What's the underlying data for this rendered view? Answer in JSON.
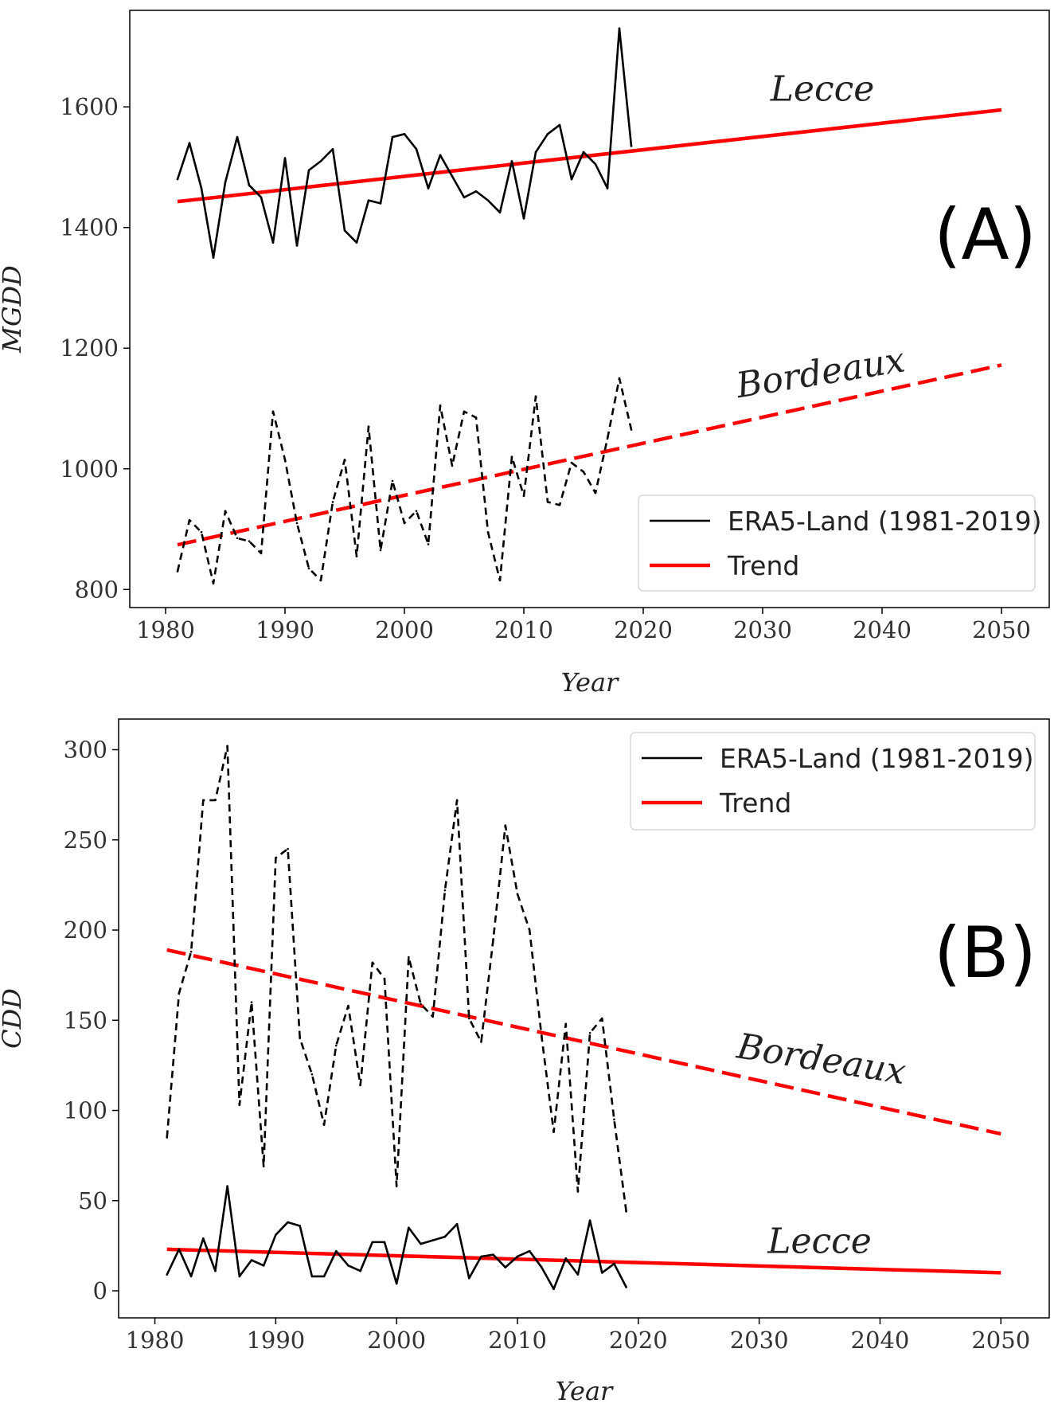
{
  "chart_data": [
    {
      "type": "line",
      "panel_label": "(A)",
      "xlabel": "Year",
      "ylabel": "MGDD",
      "xlim": [
        1977,
        2054
      ],
      "ylim": [
        770,
        1760
      ],
      "xticks": [
        1980,
        1990,
        2000,
        2010,
        2020,
        2030,
        2040,
        2050
      ],
      "yticks": [
        800,
        1000,
        1200,
        1400,
        1600
      ],
      "legend": {
        "placement": "lower-right",
        "entries": [
          {
            "label": "ERA5-Land (1981-2019)",
            "color": "#000000"
          },
          {
            "label": "Trend",
            "color": "#ff0000"
          }
        ]
      },
      "site_labels": [
        {
          "text": "Lecce",
          "x": 2035,
          "y": 1610,
          "rotate": 0
        },
        {
          "text": "Bordeaux",
          "x": 2035,
          "y": 1140,
          "rotate": -9
        }
      ],
      "series": [
        {
          "name": "Lecce",
          "style": "solid",
          "color": "#000000",
          "x": [
            1981,
            1982,
            1983,
            1984,
            1985,
            1986,
            1987,
            1988,
            1989,
            1990,
            1991,
            1992,
            1993,
            1994,
            1995,
            1996,
            1997,
            1998,
            1999,
            2000,
            2001,
            2002,
            2003,
            2004,
            2005,
            2006,
            2007,
            2008,
            2009,
            2010,
            2011,
            2012,
            2013,
            2014,
            2015,
            2016,
            2017,
            2018,
            2019
          ],
          "y": [
            1480,
            1540,
            1465,
            1350,
            1475,
            1550,
            1470,
            1450,
            1375,
            1515,
            1370,
            1495,
            1510,
            1530,
            1395,
            1375,
            1445,
            1440,
            1550,
            1555,
            1530,
            1465,
            1520,
            1485,
            1450,
            1460,
            1445,
            1425,
            1510,
            1415,
            1525,
            1555,
            1570,
            1480,
            1525,
            1505,
            1465,
            1730,
            1535
          ]
        },
        {
          "name": "Bordeaux",
          "style": "dashed",
          "color": "#000000",
          "x": [
            1981,
            1982,
            1983,
            1984,
            1985,
            1986,
            1987,
            1988,
            1989,
            1990,
            1991,
            1992,
            1993,
            1994,
            1995,
            1996,
            1997,
            1998,
            1999,
            2000,
            2001,
            2002,
            2003,
            2004,
            2005,
            2006,
            2007,
            2008,
            2009,
            2010,
            2011,
            2012,
            2013,
            2014,
            2015,
            2016,
            2017,
            2018,
            2019
          ],
          "y": [
            830,
            915,
            895,
            810,
            930,
            885,
            880,
            860,
            1095,
            1015,
            910,
            835,
            815,
            945,
            1015,
            855,
            1070,
            865,
            980,
            910,
            930,
            875,
            1105,
            1005,
            1095,
            1085,
            895,
            815,
            1020,
            955,
            1120,
            945,
            940,
            1010,
            995,
            960,
            1050,
            1150,
            1065
          ]
        }
      ],
      "trends": [
        {
          "name": "Lecce trend",
          "style": "solid",
          "color": "#ff0000",
          "x": [
            1981,
            2050
          ],
          "y": [
            1443,
            1595
          ]
        },
        {
          "name": "Bordeaux trend",
          "style": "dashed",
          "color": "#ff0000",
          "x": [
            1981,
            2050
          ],
          "y": [
            874,
            1172
          ]
        }
      ]
    },
    {
      "type": "line",
      "panel_label": "(B)",
      "xlabel": "Year",
      "ylabel": "CDD",
      "xlim": [
        1977,
        2054
      ],
      "ylim": [
        -15,
        317
      ],
      "xticks": [
        1980,
        1990,
        2000,
        2010,
        2020,
        2030,
        2040,
        2050
      ],
      "yticks": [
        0,
        50,
        100,
        150,
        200,
        250,
        300
      ],
      "legend": {
        "placement": "top-right",
        "entries": [
          {
            "label": "ERA5-Land (1981-2019)",
            "color": "#000000"
          },
          {
            "label": "Trend",
            "color": "#ff0000"
          }
        ]
      },
      "site_labels": [
        {
          "text": "Bordeaux",
          "x": 2035,
          "y": 122,
          "rotate": 9
        },
        {
          "text": "Lecce",
          "x": 2035,
          "y": 21,
          "rotate": 0
        }
      ],
      "series": [
        {
          "name": "Bordeaux",
          "style": "dashed",
          "color": "#000000",
          "x": [
            1981,
            1982,
            1983,
            1984,
            1985,
            1986,
            1987,
            1988,
            1989,
            1990,
            1991,
            1992,
            1993,
            1994,
            1995,
            1996,
            1997,
            1998,
            1999,
            2000,
            2001,
            2002,
            2003,
            2004,
            2005,
            2006,
            2007,
            2008,
            2009,
            2010,
            2011,
            2012,
            2013,
            2014,
            2015,
            2016,
            2017,
            2018,
            2019
          ],
          "y": [
            85,
            165,
            188,
            272,
            272,
            302,
            103,
            160,
            69,
            240,
            245,
            140,
            120,
            92,
            136,
            158,
            114,
            182,
            173,
            58,
            185,
            159,
            152,
            222,
            272,
            151,
            138,
            195,
            258,
            220,
            200,
            141,
            88,
            148,
            55,
            143,
            151,
            95,
            44
          ]
        },
        {
          "name": "Lecce",
          "style": "solid",
          "color": "#000000",
          "x": [
            1981,
            1982,
            1983,
            1984,
            1985,
            1986,
            1987,
            1988,
            1989,
            1990,
            1991,
            1992,
            1993,
            1994,
            1995,
            1996,
            1997,
            1998,
            1999,
            2000,
            2001,
            2002,
            2003,
            2004,
            2005,
            2006,
            2007,
            2008,
            2009,
            2010,
            2011,
            2012,
            2013,
            2014,
            2015,
            2016,
            2017,
            2018,
            2019
          ],
          "y": [
            9,
            23,
            8,
            29,
            11,
            58,
            8,
            17,
            14,
            31,
            38,
            36,
            8,
            8,
            22,
            14,
            11,
            27,
            27,
            4,
            35,
            26,
            28,
            30,
            37,
            7,
            19,
            20,
            13,
            19,
            22,
            13,
            1,
            18,
            9,
            39,
            10,
            15,
            2
          ]
        }
      ],
      "trends": [
        {
          "name": "Bordeaux trend",
          "style": "dashed",
          "color": "#ff0000",
          "x": [
            1981,
            2050
          ],
          "y": [
            189,
            87
          ]
        },
        {
          "name": "Lecce trend",
          "style": "solid",
          "color": "#ff0000",
          "x": [
            1981,
            2050
          ],
          "y": [
            23,
            10
          ]
        }
      ]
    }
  ]
}
